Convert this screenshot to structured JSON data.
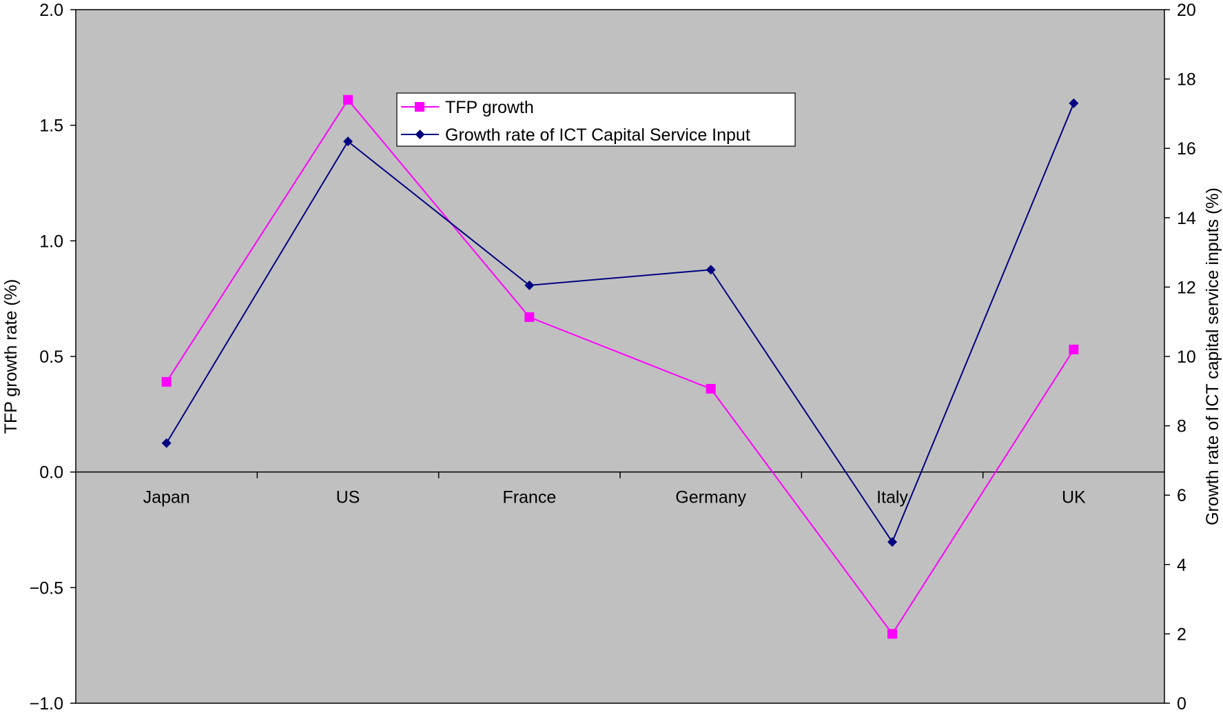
{
  "chart_data": {
    "type": "line",
    "title": "",
    "categories": [
      "Japan",
      "US",
      "France",
      "Germany",
      "Italy",
      "UK"
    ],
    "y_left": {
      "label": "TFP growth rate (%)",
      "ylim": [
        -1.0,
        2.0
      ],
      "ticks": [
        -1.0,
        -0.5,
        0.0,
        0.5,
        1.0,
        1.5,
        2.0
      ],
      "tick_labels": [
        "−1.0",
        "−0.5",
        "0.0",
        "0.5",
        "1.0",
        "1.5",
        "2.0"
      ]
    },
    "y_right": {
      "label": "Growth rate of ICT capital service inputs (%)",
      "ylim": [
        0,
        20
      ],
      "ticks": [
        0,
        2,
        4,
        6,
        8,
        10,
        12,
        14,
        16,
        18,
        20
      ],
      "tick_labels": [
        "0",
        "2",
        "4",
        "6",
        "8",
        "10",
        "12",
        "14",
        "16",
        "18",
        "20"
      ]
    },
    "series": [
      {
        "name": "TFP growth",
        "axis": "left",
        "color": "#ff00ff",
        "marker": "square",
        "values": [
          0.39,
          1.61,
          0.67,
          0.36,
          -0.7,
          0.53
        ]
      },
      {
        "name": "Growth rate of ICT Capital Service Input",
        "axis": "right",
        "color": "#000080",
        "marker": "diamond",
        "values": [
          7.5,
          16.2,
          12.05,
          12.5,
          4.65,
          17.3
        ]
      }
    ],
    "plot_background": "#c0c0c0",
    "grid": false,
    "legend_position": "top-center"
  }
}
